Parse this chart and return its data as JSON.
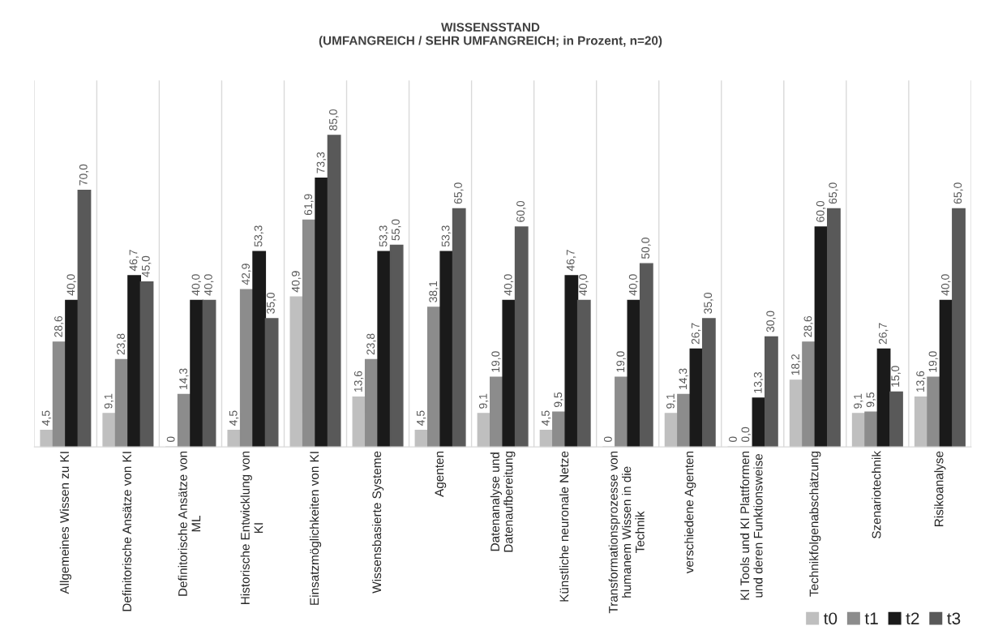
{
  "chart_data": {
    "type": "bar",
    "title": "WISSENSSTAND\n(UMFANGREICH / SEHR UMFANGREICH; in Prozent, n=20)",
    "categories": [
      "Allgemeines Wissen zu KI",
      "Definitorische Ansätze von KI",
      "Definitorische Ansätze von\nML",
      "Historische Entwicklung von\nKI",
      "Einsatzmöglichkeiten von KI",
      "Wissensbasierte Systeme",
      "Agenten",
      "Datenanalyse und\nDatenaufbereitung",
      "Künstliche neuronale Netze",
      "Transformationsprozesse von\nhumanem Wissen in die\nTechnik",
      "verschiedene Agenten",
      "KI Tools und KI Plattformen\nund deren Funktionsweise",
      "Technikfolgenabschätzung",
      "Szenariotechnik",
      "Risikoanalyse"
    ],
    "series": [
      {
        "name": "t0",
        "color": "#bfbfbf",
        "values": [
          4.5,
          9.1,
          0,
          4.5,
          40.9,
          13.6,
          4.5,
          9.1,
          4.5,
          0,
          9.1,
          0,
          18.2,
          9.1,
          13.6
        ],
        "value_labels": [
          "4,5",
          "9,1",
          "0",
          "4,5",
          "40,9",
          "13,6",
          "4,5",
          "9,1",
          "4,5",
          "0",
          "9,1",
          "0",
          "18,2",
          "9,1",
          "13,6"
        ]
      },
      {
        "name": "t1",
        "color": "#8c8c8c",
        "values": [
          28.6,
          23.8,
          14.3,
          42.9,
          61.9,
          23.8,
          38.1,
          19.0,
          9.5,
          19.0,
          14.3,
          0.0,
          28.6,
          9.5,
          19.0
        ],
        "value_labels": [
          "28,6",
          "23,8",
          "14,3",
          "42,9",
          "61,9",
          "23,8",
          "38,1",
          "19,0",
          "9,5",
          "19,0",
          "14,3",
          "0,0",
          "28,6",
          "9,5",
          "19,0"
        ]
      },
      {
        "name": "t2",
        "color": "#1a1a1a",
        "values": [
          40.0,
          46.7,
          40.0,
          53.3,
          73.3,
          53.3,
          53.3,
          40.0,
          46.7,
          40.0,
          26.7,
          13.3,
          60.0,
          26.7,
          40.0
        ],
        "value_labels": [
          "40,0",
          "46,7",
          "40,0",
          "53,3",
          "73,3",
          "53,3",
          "53,3",
          "40,0",
          "46,7",
          "40,0",
          "26,7",
          "13,3",
          "60,0",
          "26,7",
          "40,0"
        ]
      },
      {
        "name": "t3",
        "color": "#595959",
        "values": [
          70.0,
          45.0,
          40.0,
          35.0,
          85.0,
          55.0,
          65.0,
          60.0,
          40.0,
          50.0,
          35.0,
          30.0,
          65.0,
          15.0,
          65.0
        ],
        "value_labels": [
          "70,0",
          "45,0",
          "40,0",
          "35,0",
          "85,0",
          "55,0",
          "65,0",
          "60,0",
          "40,0",
          "50,0",
          "35,0",
          "30,0",
          "65,0",
          "15,0",
          "65,0"
        ]
      }
    ],
    "ylim": [
      0,
      100
    ],
    "tick_labels": "x",
    "grid": "x",
    "legend": "bottom right"
  }
}
